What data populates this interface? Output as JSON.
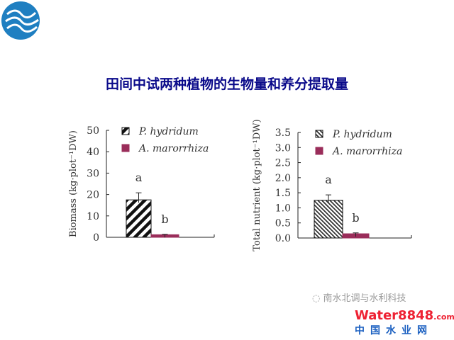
{
  "title": "田间中试两种植物的生物量和养分提取量",
  "colors": {
    "title": "#0a0a8a",
    "series_a": "#9a2d5a",
    "logo": "#1f7fc1"
  },
  "chart_data": [
    {
      "type": "bar",
      "ylabel": "Biomass (kg·plot⁻¹DW)",
      "ylim": [
        0,
        50
      ],
      "yticks": [
        "0",
        "10",
        "20",
        "30",
        "40",
        "50"
      ],
      "legend_placement": "top",
      "series": [
        {
          "name": "P. hydridum",
          "value": 17.5,
          "error": 3.3,
          "sig": "a",
          "pattern": "hatched"
        },
        {
          "name": "A. marorrhiza",
          "value": 1.2,
          "error": 0.2,
          "sig": "b",
          "pattern": "solid"
        }
      ]
    },
    {
      "type": "bar",
      "ylabel": "Total nutrient (kg·plot⁻¹DW)",
      "ylim": [
        0,
        3.5
      ],
      "yticks": [
        "0.0",
        "0.5",
        "1.0",
        "1.5",
        "2.0",
        "2.5",
        "3.0",
        "3.5"
      ],
      "legend_placement": "top",
      "series": [
        {
          "name": "P. hydridum",
          "value": 1.25,
          "error": 0.18,
          "sig": "a",
          "pattern": "hatched"
        },
        {
          "name": "A. marorrhiza",
          "value": 0.14,
          "error": 0.03,
          "sig": "b",
          "pattern": "solid"
        }
      ]
    }
  ],
  "watermark": {
    "account": "南水北调与水利科技",
    "brand": "Water8848",
    "brand_suffix": ".com",
    "brand_cn": "中国水业网"
  }
}
